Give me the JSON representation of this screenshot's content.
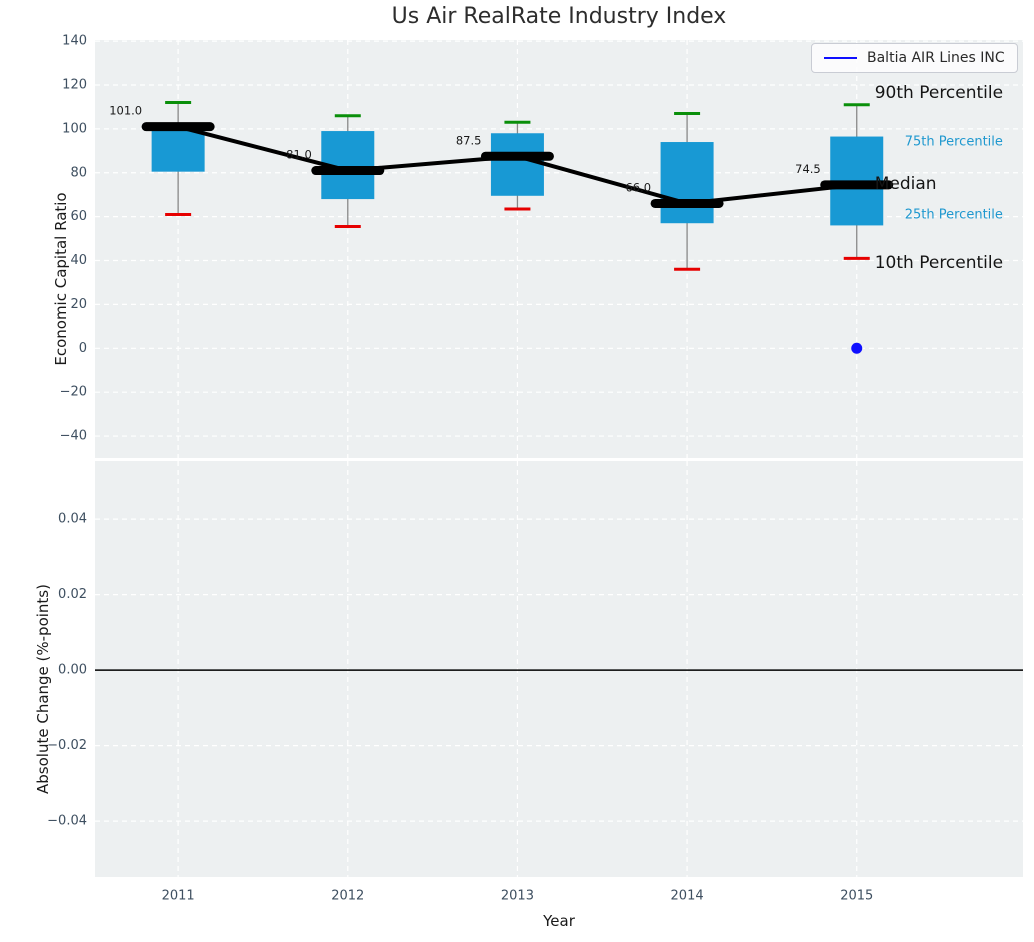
{
  "title": "Us Air RealRate Industry Index",
  "legend": {
    "label": "Baltia AIR Lines INC",
    "line_color": "#0f0fff"
  },
  "colors": {
    "panel_bg": "#edf0f1",
    "grid": "#ffffff",
    "box_fill": "#1899d4",
    "whisker": "#888888",
    "cap_90": "#0a8f0a",
    "cap_10": "#e60000",
    "median": "#000000",
    "trend_line": "#000000",
    "company_point": "#0f0fff",
    "tick_label": "#3e4f60",
    "annotation_large": "#151515",
    "annotation_small": "#1f98cf",
    "zero_line": "#000000"
  },
  "chart_data": {
    "type": "box",
    "title": "Us Air RealRate Industry Index",
    "xlabel": "Year",
    "categories": [
      2011,
      2012,
      2013,
      2014,
      2015
    ],
    "xtick_labels": [
      "2011",
      "2012",
      "2013",
      "2014",
      "2015"
    ],
    "xlim": [
      2010.51,
      2015.98
    ],
    "top_panel": {
      "ylabel": "Economic Capital Ratio",
      "ylim": [
        -50,
        140.5
      ],
      "yticks": [
        {
          "v": 140,
          "label": "140"
        },
        {
          "v": 120,
          "label": "120"
        },
        {
          "v": 100,
          "label": "100"
        },
        {
          "v": 80,
          "label": "80"
        },
        {
          "v": 60,
          "label": "60"
        },
        {
          "v": 40,
          "label": "40"
        },
        {
          "v": 20,
          "label": "20"
        },
        {
          "v": 0,
          "label": "0"
        },
        {
          "v": -20,
          "label": "−20"
        },
        {
          "v": -40,
          "label": "−40"
        }
      ],
      "boxes": [
        {
          "year": 2011,
          "p10": 61,
          "p25": 80.5,
          "median": 101,
          "p75": 101.5,
          "p90": 112,
          "median_label": "101.0"
        },
        {
          "year": 2012,
          "p10": 55.5,
          "p25": 68,
          "median": 81,
          "p75": 99,
          "p90": 106,
          "median_label": "81.0"
        },
        {
          "year": 2013,
          "p10": 63.5,
          "p25": 69.5,
          "median": 87.5,
          "p75": 98,
          "p90": 103,
          "median_label": "87.5"
        },
        {
          "year": 2014,
          "p10": 36,
          "p25": 57,
          "median": 66,
          "p75": 94,
          "p90": 107,
          "median_label": "66.0"
        },
        {
          "year": 2015,
          "p10": 41,
          "p25": 56,
          "median": 74.5,
          "p75": 96.5,
          "p90": 111,
          "median_label": "74.5"
        }
      ],
      "median_trend": [
        {
          "x": 2011,
          "y": 101
        },
        {
          "x": 2012,
          "y": 81
        },
        {
          "x": 2013,
          "y": 87.5
        },
        {
          "x": 2014,
          "y": 66
        },
        {
          "x": 2015,
          "y": 74.5
        }
      ],
      "company_point": {
        "x": 2015,
        "y": 0.0
      },
      "annotations": [
        {
          "text": "90th Percentile",
          "y": 116.4,
          "style": "large"
        },
        {
          "text": "75th Percentile",
          "y": 94.1,
          "style": "small"
        },
        {
          "text": "Median",
          "y": 74.9,
          "style": "large"
        },
        {
          "text": "25th Percentile",
          "y": 60.8,
          "style": "small"
        },
        {
          "text": "10th Percentile",
          "y": 38.9,
          "style": "large"
        }
      ]
    },
    "bottom_panel": {
      "ylabel": "Absolute Change (%-points)",
      "ylim": [
        -0.0548,
        0.0554
      ],
      "yticks": [
        {
          "v": 0.04,
          "label": "0.04"
        },
        {
          "v": 0.02,
          "label": "0.02"
        },
        {
          "v": 0.0,
          "label": "0.00"
        },
        {
          "v": -0.02,
          "label": "−0.02"
        },
        {
          "v": -0.04,
          "label": "−0.04"
        }
      ],
      "zero_line_y": 0.0
    }
  }
}
